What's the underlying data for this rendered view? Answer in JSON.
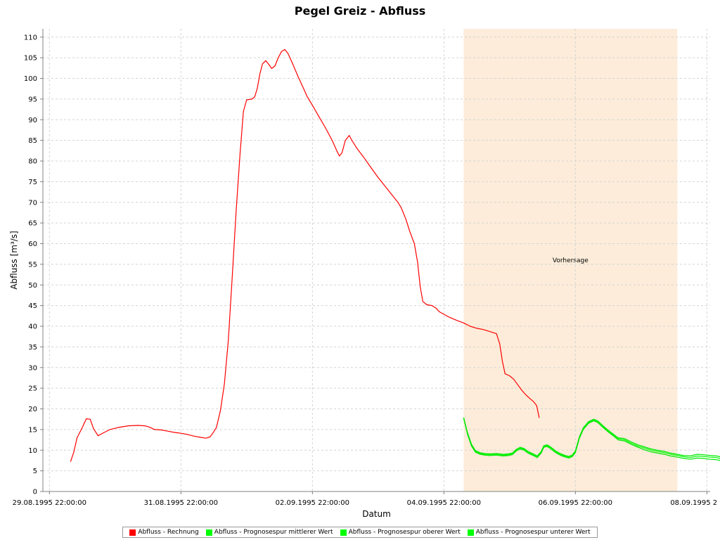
{
  "chart_data": {
    "type": "line",
    "title": "Pegel Greiz - Abfluss",
    "xlabel": "Datum",
    "ylabel": "Abfluss [m³/s]",
    "ylim": [
      0,
      112
    ],
    "y_ticks": [
      0,
      5,
      10,
      15,
      20,
      25,
      30,
      35,
      40,
      45,
      50,
      55,
      60,
      65,
      70,
      75,
      80,
      85,
      90,
      95,
      100,
      105,
      110
    ],
    "x_range_days": [
      -0.1,
      10.05
    ],
    "x_ticks": [
      {
        "label": "29.08.1995 22:00:00",
        "day": 0
      },
      {
        "label": "31.08.1995 22:00:00",
        "day": 2
      },
      {
        "label": "02.09.1995 22:00:00",
        "day": 4
      },
      {
        "label": "04.09.1995 22:00:00",
        "day": 6
      },
      {
        "label": "06.09.1995 22:00:00",
        "day": 8
      },
      {
        "label": "08.09.1995 2",
        "day": 10
      }
    ],
    "grid": true,
    "forecast_band": {
      "label": "Vorhersage",
      "from_day": 6.3,
      "to_day": 9.55,
      "color": "#fcecd9"
    },
    "legend_position": "bottom",
    "series": [
      {
        "name": "Abfluss - Rechnung",
        "color": "#ff0000",
        "points": [
          [
            0.32,
            7.2
          ],
          [
            0.37,
            9.5
          ],
          [
            0.42,
            13.0
          ],
          [
            0.5,
            15.5
          ],
          [
            0.56,
            17.6
          ],
          [
            0.62,
            17.5
          ],
          [
            0.67,
            15.2
          ],
          [
            0.74,
            13.5
          ],
          [
            0.82,
            14.2
          ],
          [
            0.92,
            15.0
          ],
          [
            1.05,
            15.5
          ],
          [
            1.2,
            15.9
          ],
          [
            1.35,
            16.0
          ],
          [
            1.45,
            15.9
          ],
          [
            1.52,
            15.6
          ],
          [
            1.6,
            15.0
          ],
          [
            1.7,
            14.9
          ],
          [
            1.8,
            14.6
          ],
          [
            1.9,
            14.3
          ],
          [
            2.0,
            14.1
          ],
          [
            2.1,
            13.8
          ],
          [
            2.2,
            13.4
          ],
          [
            2.3,
            13.1
          ],
          [
            2.38,
            12.9
          ],
          [
            2.44,
            13.2
          ],
          [
            2.48,
            14.0
          ],
          [
            2.54,
            15.5
          ],
          [
            2.6,
            19.5
          ],
          [
            2.66,
            26.0
          ],
          [
            2.72,
            36.5
          ],
          [
            2.78,
            52.0
          ],
          [
            2.84,
            68.0
          ],
          [
            2.9,
            82.0
          ],
          [
            2.95,
            92.0
          ],
          [
            3.0,
            94.8
          ],
          [
            3.08,
            95.0
          ],
          [
            3.12,
            95.5
          ],
          [
            3.16,
            97.5
          ],
          [
            3.2,
            101.0
          ],
          [
            3.24,
            103.5
          ],
          [
            3.29,
            104.3
          ],
          [
            3.33,
            103.5
          ],
          [
            3.38,
            102.4
          ],
          [
            3.43,
            103.0
          ],
          [
            3.48,
            105.0
          ],
          [
            3.53,
            106.5
          ],
          [
            3.58,
            107.0
          ],
          [
            3.63,
            106.0
          ],
          [
            3.7,
            103.5
          ],
          [
            3.78,
            100.5
          ],
          [
            3.86,
            97.7
          ],
          [
            3.92,
            95.6
          ],
          [
            4.0,
            93.5
          ],
          [
            4.1,
            90.7
          ],
          [
            4.2,
            88.0
          ],
          [
            4.3,
            85.0
          ],
          [
            4.37,
            82.5
          ],
          [
            4.41,
            81.2
          ],
          [
            4.45,
            82.0
          ],
          [
            4.5,
            85.0
          ],
          [
            4.56,
            86.2
          ],
          [
            4.6,
            85.0
          ],
          [
            4.68,
            83.0
          ],
          [
            4.78,
            80.9
          ],
          [
            4.9,
            78.2
          ],
          [
            5.0,
            76.0
          ],
          [
            5.1,
            74.0
          ],
          [
            5.2,
            72.0
          ],
          [
            5.3,
            70.0
          ],
          [
            5.35,
            68.7
          ],
          [
            5.42,
            66.0
          ],
          [
            5.48,
            63.0
          ],
          [
            5.55,
            60.0
          ],
          [
            5.6,
            55.5
          ],
          [
            5.64,
            49.5
          ],
          [
            5.68,
            46.0
          ],
          [
            5.74,
            45.2
          ],
          [
            5.82,
            45.0
          ],
          [
            5.88,
            44.4
          ],
          [
            5.93,
            43.5
          ],
          [
            6.0,
            42.9
          ],
          [
            6.08,
            42.2
          ],
          [
            6.2,
            41.4
          ],
          [
            6.3,
            40.8
          ],
          [
            6.4,
            40.0
          ],
          [
            6.5,
            39.5
          ],
          [
            6.6,
            39.2
          ],
          [
            6.7,
            38.7
          ],
          [
            6.8,
            38.2
          ],
          [
            6.85,
            35.7
          ],
          [
            6.89,
            31.5
          ],
          [
            6.93,
            28.5
          ],
          [
            7.0,
            28.0
          ],
          [
            7.06,
            27.2
          ],
          [
            7.12,
            25.9
          ],
          [
            7.18,
            24.6
          ],
          [
            7.24,
            23.5
          ],
          [
            7.3,
            22.6
          ],
          [
            7.36,
            21.8
          ],
          [
            7.41,
            20.8
          ],
          [
            7.45,
            17.8
          ]
        ]
      },
      {
        "name": "Abfluss - Prognosespur mittlerer Wert",
        "color": "#00ff00",
        "points": [
          [
            6.3,
            17.8
          ],
          [
            6.36,
            14.0
          ],
          [
            6.42,
            11.2
          ],
          [
            6.48,
            9.7
          ],
          [
            6.55,
            9.2
          ],
          [
            6.62,
            9.0
          ],
          [
            6.7,
            8.9
          ],
          [
            6.8,
            9.0
          ],
          [
            6.9,
            8.8
          ],
          [
            6.98,
            8.9
          ],
          [
            7.04,
            9.1
          ],
          [
            7.1,
            10.0
          ],
          [
            7.16,
            10.5
          ],
          [
            7.22,
            10.2
          ],
          [
            7.28,
            9.5
          ],
          [
            7.36,
            8.9
          ],
          [
            7.42,
            8.4
          ],
          [
            7.48,
            9.5
          ],
          [
            7.52,
            10.9
          ],
          [
            7.57,
            11.1
          ],
          [
            7.62,
            10.6
          ],
          [
            7.7,
            9.6
          ],
          [
            7.78,
            8.9
          ],
          [
            7.85,
            8.5
          ],
          [
            7.9,
            8.3
          ],
          [
            7.95,
            8.6
          ],
          [
            8.0,
            9.6
          ],
          [
            8.06,
            13.0
          ],
          [
            8.12,
            15.2
          ],
          [
            8.2,
            16.7
          ],
          [
            8.28,
            17.3
          ],
          [
            8.34,
            16.9
          ],
          [
            8.42,
            15.7
          ],
          [
            8.5,
            14.6
          ],
          [
            8.6,
            13.4
          ],
          [
            8.65,
            12.8
          ],
          [
            8.75,
            12.5
          ],
          [
            8.85,
            11.7
          ],
          [
            8.95,
            11.0
          ],
          [
            9.05,
            10.5
          ],
          [
            9.15,
            10.0
          ],
          [
            9.25,
            9.7
          ],
          [
            9.35,
            9.4
          ],
          [
            9.45,
            9.0
          ],
          [
            9.55,
            8.7
          ],
          [
            9.65,
            8.4
          ],
          [
            9.75,
            8.2
          ],
          [
            9.85,
            8.6
          ],
          [
            9.95,
            8.5
          ],
          [
            10.05,
            8.3
          ],
          [
            10.15,
            8.2
          ],
          [
            10.2,
            8.0
          ],
          [
            10.24,
            7.0
          ],
          [
            10.28,
            4.0
          ]
        ]
      },
      {
        "name": "Abfluss - Prognosespur oberer Wert",
        "color": "#00e600",
        "points": [
          [
            6.3,
            17.9
          ],
          [
            6.36,
            14.2
          ],
          [
            6.42,
            11.4
          ],
          [
            6.48,
            9.9
          ],
          [
            6.55,
            9.4
          ],
          [
            6.62,
            9.2
          ],
          [
            6.7,
            9.1
          ],
          [
            6.8,
            9.2
          ],
          [
            6.9,
            9.0
          ],
          [
            6.98,
            9.1
          ],
          [
            7.04,
            9.3
          ],
          [
            7.1,
            10.2
          ],
          [
            7.16,
            10.7
          ],
          [
            7.22,
            10.4
          ],
          [
            7.28,
            9.7
          ],
          [
            7.36,
            9.1
          ],
          [
            7.42,
            8.6
          ],
          [
            7.48,
            9.7
          ],
          [
            7.52,
            11.1
          ],
          [
            7.57,
            11.3
          ],
          [
            7.62,
            10.8
          ],
          [
            7.7,
            9.8
          ],
          [
            7.78,
            9.1
          ],
          [
            7.85,
            8.7
          ],
          [
            7.9,
            8.5
          ],
          [
            7.95,
            8.8
          ],
          [
            8.0,
            9.8
          ],
          [
            8.06,
            13.2
          ],
          [
            8.12,
            15.4
          ],
          [
            8.2,
            16.9
          ],
          [
            8.28,
            17.5
          ],
          [
            8.34,
            17.1
          ],
          [
            8.42,
            15.9
          ],
          [
            8.5,
            14.8
          ],
          [
            8.6,
            13.6
          ],
          [
            8.65,
            13.0
          ],
          [
            8.75,
            12.8
          ],
          [
            8.85,
            12.0
          ],
          [
            8.95,
            11.3
          ],
          [
            9.05,
            10.8
          ],
          [
            9.15,
            10.3
          ],
          [
            9.25,
            10.0
          ],
          [
            9.35,
            9.7
          ],
          [
            9.45,
            9.3
          ],
          [
            9.55,
            9.0
          ],
          [
            9.65,
            8.7
          ],
          [
            9.75,
            8.6
          ],
          [
            9.85,
            9.0
          ],
          [
            9.95,
            8.9
          ],
          [
            10.05,
            8.7
          ],
          [
            10.15,
            8.6
          ],
          [
            10.2,
            8.4
          ],
          [
            10.24,
            7.3
          ],
          [
            10.28,
            4.2
          ]
        ]
      },
      {
        "name": "Abfluss - Prognosespur unterer Wert",
        "color": "#00e600",
        "points": [
          [
            6.3,
            17.7
          ],
          [
            6.36,
            13.8
          ],
          [
            6.42,
            11.0
          ],
          [
            6.48,
            9.5
          ],
          [
            6.55,
            9.0
          ],
          [
            6.62,
            8.8
          ],
          [
            6.7,
            8.7
          ],
          [
            6.8,
            8.8
          ],
          [
            6.9,
            8.6
          ],
          [
            6.98,
            8.7
          ],
          [
            7.04,
            8.9
          ],
          [
            7.1,
            9.8
          ],
          [
            7.16,
            10.3
          ],
          [
            7.22,
            10.0
          ],
          [
            7.28,
            9.3
          ],
          [
            7.36,
            8.7
          ],
          [
            7.42,
            8.2
          ],
          [
            7.48,
            9.3
          ],
          [
            7.52,
            10.7
          ],
          [
            7.57,
            10.9
          ],
          [
            7.62,
            10.4
          ],
          [
            7.7,
            9.4
          ],
          [
            7.78,
            8.7
          ],
          [
            7.85,
            8.3
          ],
          [
            7.9,
            8.1
          ],
          [
            7.95,
            8.4
          ],
          [
            8.0,
            9.4
          ],
          [
            8.06,
            12.8
          ],
          [
            8.12,
            15.0
          ],
          [
            8.2,
            16.5
          ],
          [
            8.28,
            17.1
          ],
          [
            8.34,
            16.7
          ],
          [
            8.42,
            15.5
          ],
          [
            8.5,
            14.4
          ],
          [
            8.6,
            13.2
          ],
          [
            8.65,
            12.5
          ],
          [
            8.75,
            12.2
          ],
          [
            8.85,
            11.4
          ],
          [
            8.95,
            10.7
          ],
          [
            9.05,
            10.1
          ],
          [
            9.15,
            9.6
          ],
          [
            9.25,
            9.3
          ],
          [
            9.35,
            9.0
          ],
          [
            9.45,
            8.6
          ],
          [
            9.55,
            8.3
          ],
          [
            9.65,
            8.0
          ],
          [
            9.75,
            7.8
          ],
          [
            9.85,
            8.1
          ],
          [
            9.95,
            8.0
          ],
          [
            10.05,
            7.8
          ],
          [
            10.15,
            7.7
          ],
          [
            10.2,
            7.5
          ],
          [
            10.24,
            6.6
          ],
          [
            10.28,
            3.8
          ]
        ]
      }
    ]
  }
}
